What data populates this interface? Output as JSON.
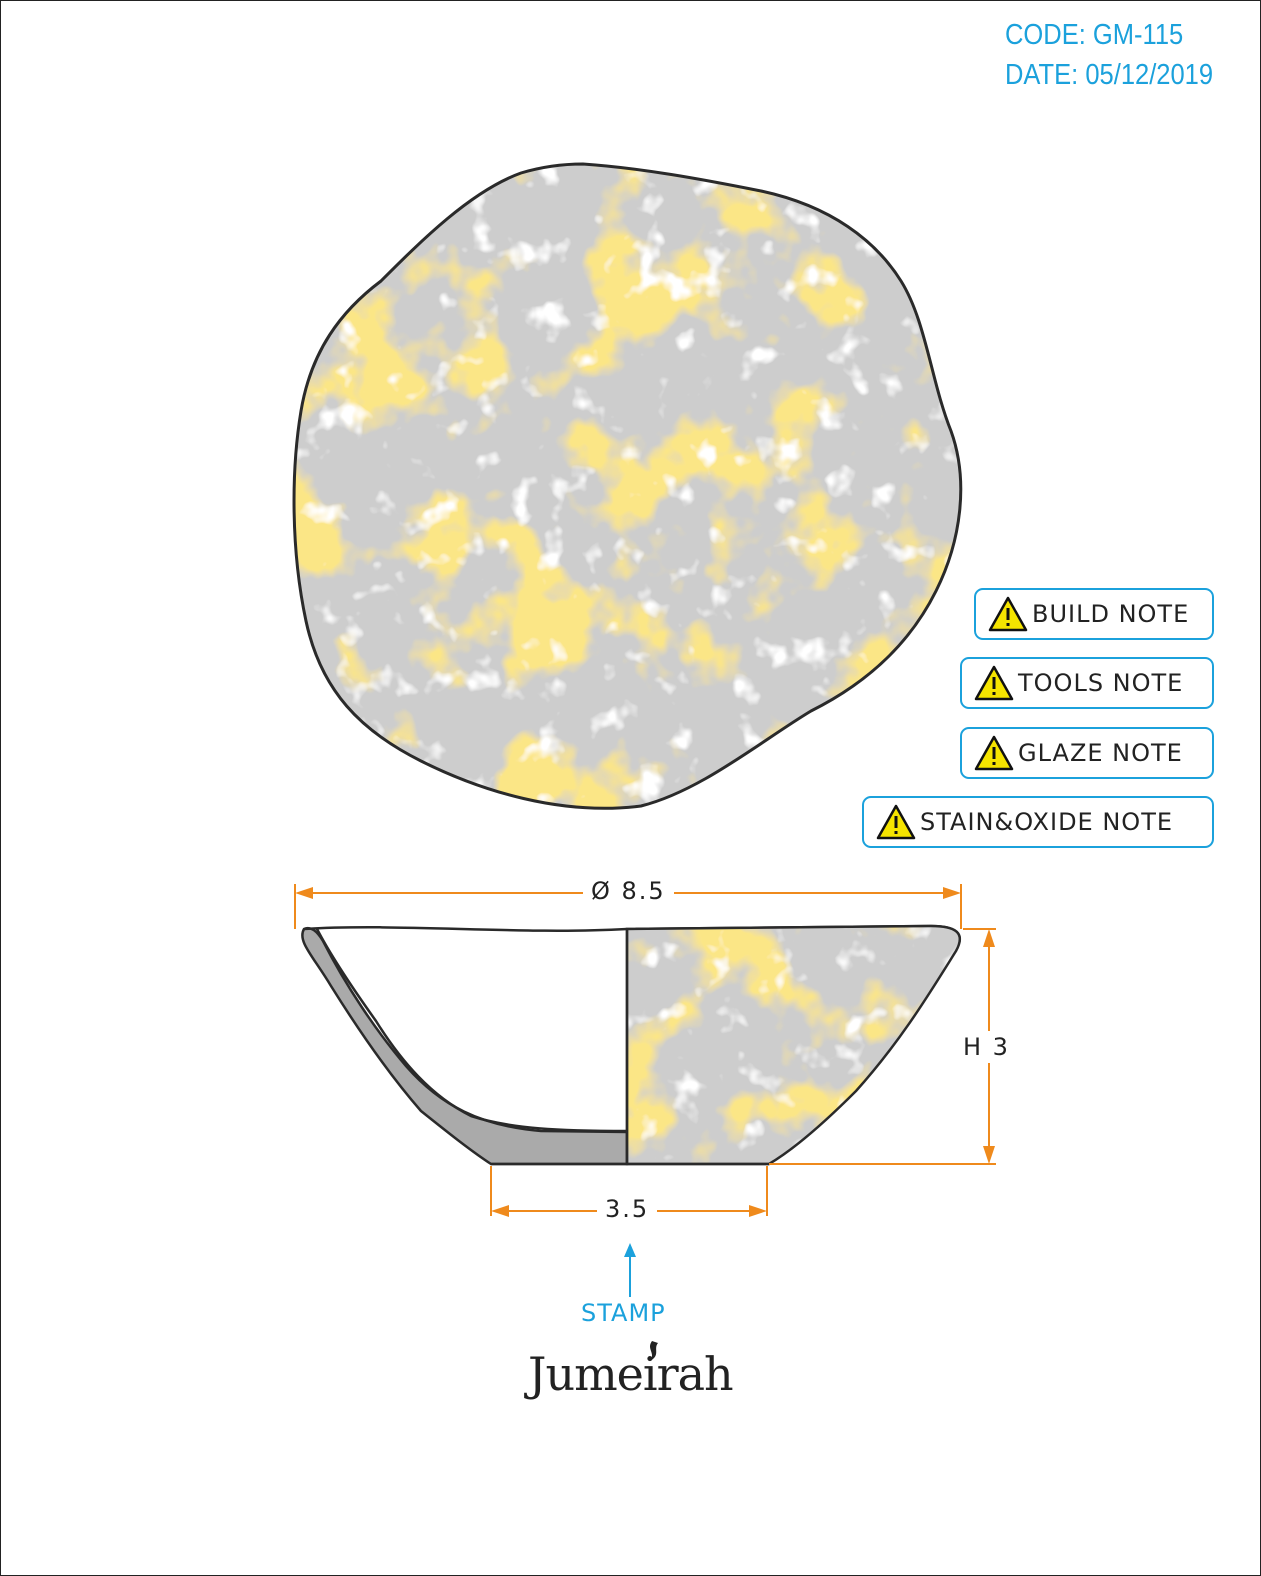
{
  "header": {
    "code": "CODE: GM-115",
    "date": "DATE: 05/12/2019"
  },
  "notes": [
    {
      "label": "BUILD NOTE",
      "icon": "warning-icon"
    },
    {
      "label": "TOOLS NOTE",
      "icon": "warning-icon"
    },
    {
      "label": "GLAZE NOTE",
      "icon": "warning-icon"
    },
    {
      "label": "STAIN&OXIDE NOTE",
      "icon": "warning-icon"
    }
  ],
  "dimensions": {
    "diameter": "Ø 8.5",
    "height": "H 3",
    "base": "3.5"
  },
  "stamp": {
    "label": "STAMP",
    "logo_text": "Jumeirah"
  },
  "colors": {
    "accent": "#1ba1dc",
    "dimension": "#ef8a1c",
    "outline": "#2a2a2a",
    "glaze_grey": "#c9c9c9",
    "glaze_yellow": "#f7c93c",
    "section_fill": "#aaaaaa"
  }
}
